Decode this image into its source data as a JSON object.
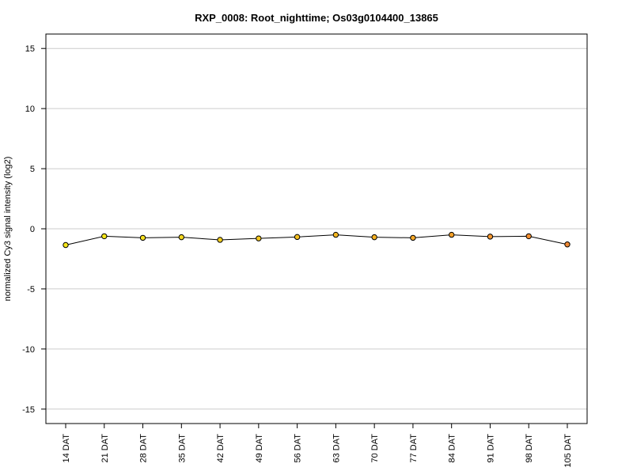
{
  "chart_data": {
    "type": "line",
    "title": "RXP_0008: Root_nighttime; Os03g0104400_13865",
    "xlabel": "",
    "ylabel": "normalized Cy3 signal intensity (log2)",
    "categories": [
      "14 DAT",
      "21 DAT",
      "28 DAT",
      "35 DAT",
      "42 DAT",
      "49 DAT",
      "56 DAT",
      "63 DAT",
      "70 DAT",
      "77 DAT",
      "84 DAT",
      "91 DAT",
      "98 DAT",
      "105 DAT"
    ],
    "series": [
      {
        "values": [
          -1.35,
          -0.62,
          -0.75,
          -0.7,
          -0.92,
          -0.8,
          -0.68,
          -0.5,
          -0.7,
          -0.75,
          -0.5,
          -0.65,
          -0.62,
          -1.3
        ]
      }
    ],
    "point_colors": [
      "#f5e61a",
      "#f5e61a",
      "#f5e020",
      "#f5d820",
      "#f5d020",
      "#f5c820",
      "#f5c020",
      "#f5b820",
      "#f5b020",
      "#f5a828",
      "#f5a028",
      "#f59830",
      "#f58f30",
      "#f08a35"
    ],
    "line_color": "#000000",
    "yticks": [
      -15,
      -10,
      -5,
      0,
      5,
      10,
      15
    ],
    "ylim": [
      -16.2,
      16.2
    ],
    "grid": "horizontal",
    "legend": "none"
  }
}
